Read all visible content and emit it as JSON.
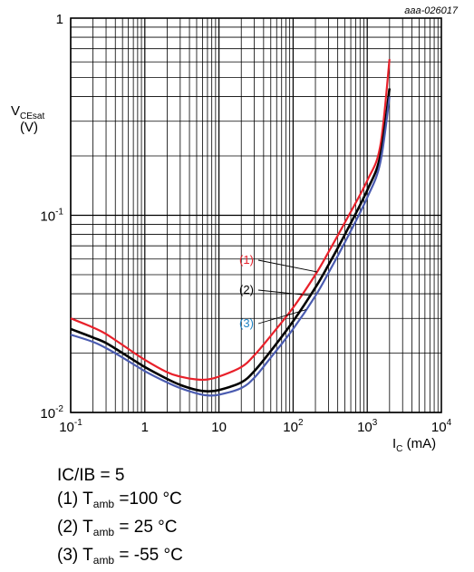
{
  "chart_data": {
    "type": "line",
    "reference": "aaa-026017",
    "xscale": "log",
    "yscale": "log",
    "xlim": [
      0.1,
      10000
    ],
    "ylim": [
      0.01,
      1
    ],
    "grid": true,
    "x_ticks": [
      {
        "base": "10",
        "exp": "-1"
      },
      {
        "base": "1",
        "exp": ""
      },
      {
        "base": "10",
        "exp": ""
      },
      {
        "base": "10",
        "exp": "2"
      },
      {
        "base": "10",
        "exp": "3"
      },
      {
        "base": "10",
        "exp": "4"
      }
    ],
    "y_ticks": [
      {
        "base": "10",
        "exp": "-2"
      },
      {
        "base": "10",
        "exp": "-1"
      },
      {
        "base": "1",
        "exp": ""
      }
    ],
    "xlabel": {
      "main": "I",
      "sub": "C",
      "unit": "(mA)"
    },
    "ylabel": {
      "main": "V",
      "sub": "CEsat",
      "unit": "(V)"
    },
    "colors": {
      "s1": "#e8202a",
      "s2": "#000000",
      "s3": "#4a5bb0",
      "s3_label": "#1f84c6",
      "s1_label": "#e8202a"
    },
    "series": [
      {
        "name": "(1)",
        "color": "#e8202a",
        "points": [
          [
            0.1,
            0.03
          ],
          [
            0.2,
            0.027
          ],
          [
            0.3,
            0.025
          ],
          [
            0.5,
            0.022
          ],
          [
            1,
            0.0185
          ],
          [
            2,
            0.016
          ],
          [
            3,
            0.0152
          ],
          [
            5,
            0.0147
          ],
          [
            7,
            0.0147
          ],
          [
            10,
            0.0152
          ],
          [
            20,
            0.017
          ],
          [
            30,
            0.0195
          ],
          [
            50,
            0.0245
          ],
          [
            100,
            0.034
          ],
          [
            200,
            0.05
          ],
          [
            300,
            0.065
          ],
          [
            500,
            0.092
          ],
          [
            1000,
            0.15
          ],
          [
            1500,
            0.225
          ],
          [
            2000,
            0.62
          ]
        ]
      },
      {
        "name": "(2)",
        "color": "#000000",
        "points": [
          [
            0.1,
            0.0265
          ],
          [
            0.2,
            0.024
          ],
          [
            0.3,
            0.0225
          ],
          [
            0.5,
            0.02
          ],
          [
            1,
            0.017
          ],
          [
            2,
            0.0148
          ],
          [
            3,
            0.0138
          ],
          [
            5,
            0.013
          ],
          [
            7,
            0.0128
          ],
          [
            10,
            0.013
          ],
          [
            20,
            0.0142
          ],
          [
            30,
            0.0162
          ],
          [
            50,
            0.0205
          ],
          [
            100,
            0.029
          ],
          [
            200,
            0.043
          ],
          [
            300,
            0.056
          ],
          [
            500,
            0.08
          ],
          [
            1000,
            0.134
          ],
          [
            1500,
            0.2
          ],
          [
            2000,
            0.44
          ]
        ]
      },
      {
        "name": "(3)",
        "color": "#4a5bb0",
        "points": [
          [
            0.1,
            0.0248
          ],
          [
            0.2,
            0.0228
          ],
          [
            0.3,
            0.0212
          ],
          [
            0.5,
            0.019
          ],
          [
            1,
            0.0162
          ],
          [
            2,
            0.0142
          ],
          [
            3,
            0.0133
          ],
          [
            5,
            0.0125
          ],
          [
            7,
            0.0122
          ],
          [
            10,
            0.0123
          ],
          [
            20,
            0.0133
          ],
          [
            30,
            0.015
          ],
          [
            50,
            0.019
          ],
          [
            100,
            0.0265
          ],
          [
            200,
            0.039
          ],
          [
            300,
            0.051
          ],
          [
            500,
            0.073
          ],
          [
            1000,
            0.123
          ],
          [
            1500,
            0.185
          ],
          [
            2000,
            0.4
          ]
        ]
      }
    ]
  },
  "caption": {
    "line0": "IC/IB = 5",
    "line1_prefix": "(1) T",
    "line1_sub": "amb",
    "line1_suffix": " =100 °C",
    "line2_prefix": "(2) T",
    "line2_sub": "amb",
    "line2_suffix": " = 25 °C",
    "line3_prefix": "(3) T",
    "line3_sub": "amb",
    "line3_suffix": " = -55 °C"
  }
}
